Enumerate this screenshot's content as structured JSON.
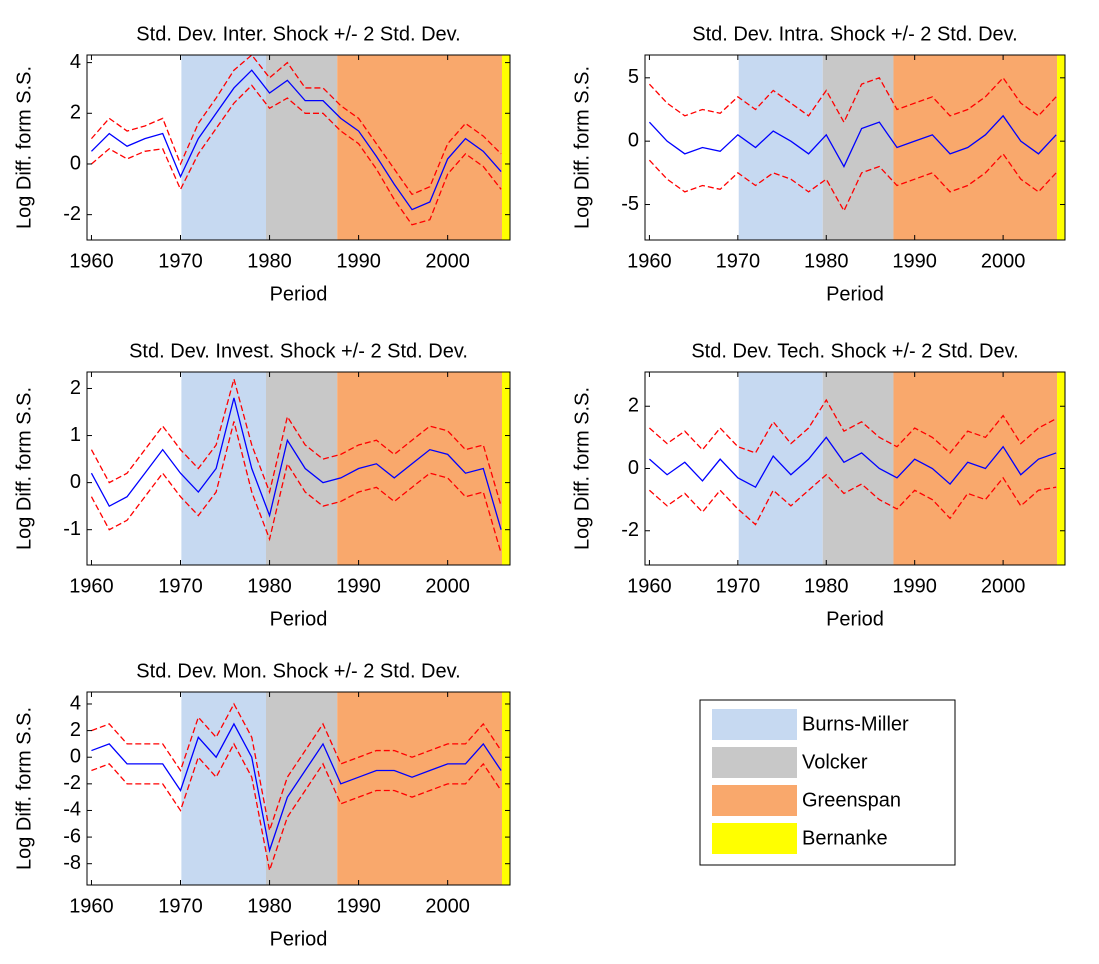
{
  "eras": [
    {
      "name": "Burns-Miller",
      "color": "#c6d9f1",
      "start": 1970.1,
      "end": 1979.6
    },
    {
      "name": "Volcker",
      "color": "#c8c8c8",
      "start": 1979.6,
      "end": 1987.6
    },
    {
      "name": "Greenspan",
      "color": "#f9a86c",
      "start": 1987.6,
      "end": 2006.1
    },
    {
      "name": "Bernanke",
      "color": "#ffff00",
      "start": 2006.1,
      "end": 2007.0
    }
  ],
  "chart_data": [
    {
      "type": "line",
      "title": "Std. Dev. Inter. Shock +/- 2 Std. Dev.",
      "xlabel": "Period",
      "ylabel": "Log Diff. form S.S.",
      "x": [
        1960,
        1962,
        1964,
        1966,
        1968,
        1970,
        1972,
        1974,
        1976,
        1978,
        1980,
        1982,
        1984,
        1986,
        1988,
        1990,
        1992,
        1994,
        1996,
        1998,
        2000,
        2002,
        2004,
        2006
      ],
      "xlim": [
        1959.5,
        2007.0
      ],
      "xticks": [
        1960,
        1970,
        1980,
        1990,
        2000
      ],
      "ylim": [
        -3.0,
        4.3
      ],
      "yticks": [
        -2,
        0,
        2,
        4
      ],
      "series": [
        {
          "color": "#0000ff",
          "linestyle": "solid",
          "values": [
            0.5,
            1.2,
            0.7,
            1.0,
            1.2,
            -0.5,
            1.0,
            2.0,
            3.0,
            3.7,
            2.8,
            3.3,
            2.5,
            2.5,
            1.8,
            1.3,
            0.3,
            -0.8,
            -1.8,
            -1.5,
            0.2,
            1.0,
            0.5,
            -0.3
          ]
        },
        {
          "color": "#ff0000",
          "linestyle": "dashed",
          "values": [
            1.0,
            1.8,
            1.3,
            1.5,
            1.8,
            0.0,
            1.6,
            2.6,
            3.7,
            4.3,
            3.4,
            4.0,
            3.0,
            3.0,
            2.3,
            1.8,
            0.8,
            -0.2,
            -1.2,
            -0.9,
            0.8,
            1.6,
            1.1,
            0.4
          ]
        },
        {
          "color": "#ff0000",
          "linestyle": "dashed",
          "values": [
            0.0,
            0.6,
            0.2,
            0.5,
            0.6,
            -1.0,
            0.4,
            1.4,
            2.4,
            3.1,
            2.2,
            2.6,
            2.0,
            2.0,
            1.3,
            0.8,
            -0.2,
            -1.4,
            -2.4,
            -2.2,
            -0.4,
            0.4,
            -0.1,
            -1.0
          ]
        }
      ]
    },
    {
      "type": "line",
      "title": "Std. Dev. Intra. Shock +/- 2 Std. Dev.",
      "xlabel": "Period",
      "ylabel": "Log Diff. form S.S.",
      "x": [
        1960,
        1962,
        1964,
        1966,
        1968,
        1970,
        1972,
        1974,
        1976,
        1978,
        1980,
        1982,
        1984,
        1986,
        1988,
        1990,
        1992,
        1994,
        1996,
        1998,
        2000,
        2002,
        2004,
        2006
      ],
      "xlim": [
        1959.5,
        2007.0
      ],
      "xticks": [
        1960,
        1970,
        1980,
        1990,
        2000
      ],
      "ylim": [
        -7.8,
        6.8
      ],
      "yticks": [
        -5,
        0,
        5
      ],
      "series": [
        {
          "color": "#0000ff",
          "linestyle": "solid",
          "values": [
            1.5,
            0,
            -1,
            -0.5,
            -0.8,
            0.5,
            -0.5,
            0.8,
            0,
            -1,
            0.5,
            -2,
            1.0,
            1.5,
            -0.5,
            0,
            0.5,
            -1,
            -0.5,
            0.5,
            2,
            0,
            -1,
            0.5
          ]
        },
        {
          "color": "#ff0000",
          "linestyle": "dashed",
          "values": [
            4.5,
            3,
            2,
            2.5,
            2.2,
            3.5,
            2.5,
            4,
            3,
            2,
            4,
            1.5,
            4.5,
            5,
            2.5,
            3,
            3.5,
            2,
            2.5,
            3.5,
            5,
            3,
            2,
            3.5
          ]
        },
        {
          "color": "#ff0000",
          "linestyle": "dashed",
          "values": [
            -1.5,
            -3,
            -4,
            -3.5,
            -3.8,
            -2.5,
            -3.5,
            -2.5,
            -3,
            -4,
            -3,
            -5.5,
            -2.5,
            -2,
            -3.5,
            -3,
            -2.5,
            -4,
            -3.5,
            -2.5,
            -1,
            -3,
            -4,
            -2.5
          ]
        }
      ]
    },
    {
      "type": "line",
      "title": "Std. Dev. Invest. Shock +/- 2 Std. Dev.",
      "xlabel": "Period",
      "ylabel": "Log Diff. form S.S.",
      "x": [
        1960,
        1962,
        1964,
        1966,
        1968,
        1970,
        1972,
        1974,
        1976,
        1978,
        1980,
        1982,
        1984,
        1986,
        1988,
        1990,
        1992,
        1994,
        1996,
        1998,
        2000,
        2002,
        2004,
        2006
      ],
      "xlim": [
        1959.5,
        2007.0
      ],
      "xticks": [
        1960,
        1970,
        1980,
        1990,
        2000
      ],
      "ylim": [
        -1.75,
        2.35
      ],
      "yticks": [
        -1,
        0,
        1,
        2
      ],
      "series": [
        {
          "color": "#0000ff",
          "linestyle": "solid",
          "values": [
            0.2,
            -0.5,
            -0.3,
            0.2,
            0.7,
            0.2,
            -0.2,
            0.3,
            1.8,
            0.3,
            -0.7,
            0.9,
            0.3,
            0,
            0.1,
            0.3,
            0.4,
            0.1,
            0.4,
            0.7,
            0.6,
            0.2,
            0.3,
            -1.0
          ]
        },
        {
          "color": "#ff0000",
          "linestyle": "dashed",
          "values": [
            0.7,
            0,
            0.2,
            0.7,
            1.2,
            0.7,
            0.3,
            0.8,
            2.2,
            0.8,
            -0.2,
            1.4,
            0.8,
            0.5,
            0.6,
            0.8,
            0.9,
            0.6,
            0.9,
            1.2,
            1.1,
            0.7,
            0.8,
            -0.5
          ]
        },
        {
          "color": "#ff0000",
          "linestyle": "dashed",
          "values": [
            -0.3,
            -1.0,
            -0.8,
            -0.3,
            0.2,
            -0.3,
            -0.7,
            -0.2,
            1.3,
            -0.2,
            -1.2,
            0.4,
            -0.2,
            -0.5,
            -0.4,
            -0.2,
            -0.1,
            -0.4,
            -0.1,
            0.2,
            0.1,
            -0.3,
            -0.2,
            -1.5
          ]
        }
      ]
    },
    {
      "type": "line",
      "title": "Std. Dev. Tech. Shock +/- 2 Std. Dev.",
      "xlabel": "Period",
      "ylabel": "Log Diff. form S.S.",
      "x": [
        1960,
        1962,
        1964,
        1966,
        1968,
        1970,
        1972,
        1974,
        1976,
        1978,
        1980,
        1982,
        1984,
        1986,
        1988,
        1990,
        1992,
        1994,
        1996,
        1998,
        2000,
        2002,
        2004,
        2006
      ],
      "xlim": [
        1959.5,
        2007.0
      ],
      "xticks": [
        1960,
        1970,
        1980,
        1990,
        2000
      ],
      "ylim": [
        -3.1,
        3.1
      ],
      "yticks": [
        -2,
        0,
        2
      ],
      "series": [
        {
          "color": "#0000ff",
          "linestyle": "solid",
          "values": [
            0.3,
            -0.2,
            0.2,
            -0.4,
            0.3,
            -0.3,
            -0.6,
            0.4,
            -0.2,
            0.3,
            1.0,
            0.2,
            0.5,
            0,
            -0.3,
            0.3,
            0,
            -0.5,
            0.2,
            0,
            0.7,
            -0.2,
            0.3,
            0.5
          ]
        },
        {
          "color": "#ff0000",
          "linestyle": "dashed",
          "values": [
            1.3,
            0.8,
            1.2,
            0.6,
            1.3,
            0.7,
            0.5,
            1.5,
            0.8,
            1.3,
            2.2,
            1.2,
            1.5,
            1.0,
            0.7,
            1.3,
            1.0,
            0.5,
            1.2,
            1.0,
            1.7,
            0.8,
            1.3,
            1.6
          ]
        },
        {
          "color": "#ff0000",
          "linestyle": "dashed",
          "values": [
            -0.7,
            -1.2,
            -0.8,
            -1.4,
            -0.7,
            -1.3,
            -1.8,
            -0.7,
            -1.2,
            -0.7,
            -0.2,
            -0.8,
            -0.5,
            -1.0,
            -1.3,
            -0.7,
            -1.0,
            -1.6,
            -0.8,
            -1.0,
            -0.3,
            -1.2,
            -0.7,
            -0.6
          ]
        }
      ]
    },
    {
      "type": "line",
      "title": "Std. Dev. Mon. Shock +/- 2 Std. Dev.",
      "xlabel": "Period",
      "ylabel": "Log Diff. form S.S.",
      "x": [
        1960,
        1962,
        1964,
        1966,
        1968,
        1970,
        1972,
        1974,
        1976,
        1978,
        1980,
        1982,
        1984,
        1986,
        1988,
        1990,
        1992,
        1994,
        1996,
        1998,
        2000,
        2002,
        2004,
        2006
      ],
      "xlim": [
        1959.5,
        2007.0
      ],
      "xticks": [
        1960,
        1970,
        1980,
        1990,
        2000
      ],
      "ylim": [
        -9.6,
        4.9
      ],
      "yticks": [
        -8,
        -6,
        -4,
        -2,
        0,
        2,
        4
      ],
      "series": [
        {
          "color": "#0000ff",
          "linestyle": "solid",
          "values": [
            0.5,
            1,
            -0.5,
            -0.5,
            -0.5,
            -2.5,
            1.5,
            0,
            2.5,
            0,
            -7,
            -3,
            -1,
            1,
            -2,
            -1.5,
            -1,
            -1,
            -1.5,
            -1,
            -0.5,
            -0.5,
            1,
            -1
          ]
        },
        {
          "color": "#ff0000",
          "linestyle": "dashed",
          "values": [
            2,
            2.5,
            1,
            1,
            1,
            -1,
            3,
            1.5,
            4,
            1.5,
            -5.5,
            -1.5,
            0.5,
            2.5,
            -0.5,
            0,
            0.5,
            0.5,
            0,
            0.5,
            1,
            1,
            2.5,
            0.5
          ]
        },
        {
          "color": "#ff0000",
          "linestyle": "dashed",
          "values": [
            -1,
            -0.5,
            -2,
            -2,
            -2,
            -4,
            0,
            -1.5,
            1,
            -1.5,
            -8.5,
            -4.5,
            -2.5,
            -0.5,
            -3.5,
            -3,
            -2.5,
            -2.5,
            -3,
            -2.5,
            -2,
            -2,
            -0.5,
            -2.5
          ]
        }
      ]
    }
  ]
}
